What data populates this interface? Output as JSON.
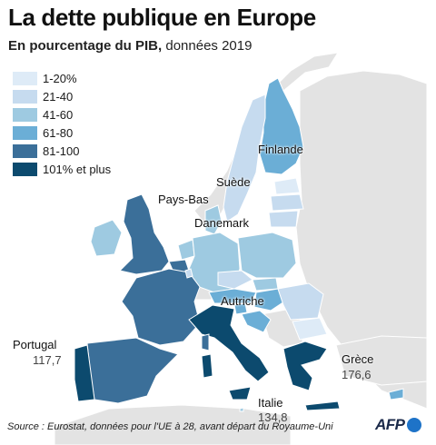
{
  "header": {
    "title": "La dette publique en Europe",
    "subtitle_bold": "En pourcentage du PIB,",
    "subtitle_rest": " données 2019"
  },
  "legend": [
    {
      "label": "1-20%",
      "color": "#deebf7"
    },
    {
      "label": "21-40",
      "color": "#c6dbef"
    },
    {
      "label": "41-60",
      "color": "#9ecae1"
    },
    {
      "label": "61-80",
      "color": "#6baed6"
    },
    {
      "label": "81-100",
      "color": "#3b6f99"
    },
    {
      "label": "101% et plus",
      "color": "#0c4a6e"
    }
  ],
  "labels": {
    "finlande": "Finlande",
    "suede": "Suède",
    "pays_bas": "Pays-Bas",
    "danemark": "Danemark",
    "autriche": "Autriche",
    "portugal": "Portugal",
    "portugal_value": "117,7",
    "grece": "Grèce",
    "grece_value": "176,6",
    "italie": "Italie",
    "italie_value": "134,8"
  },
  "footer": {
    "source": "Source : Eurostat, données pour l'UE à 28, avant départ du Royaume-Uni",
    "brand": "AFP"
  },
  "colors": {
    "non_eu": "#e3e3e3",
    "c1": "#deebf7",
    "c2": "#c6dbef",
    "c3": "#9ecae1",
    "c4": "#6baed6",
    "c5": "#3b6f99",
    "c6": "#0c4a6e"
  },
  "map_data": [
    {
      "country": "Portugal",
      "value": 117.7,
      "class": "101% et plus"
    },
    {
      "country": "Grèce",
      "value": 176.6,
      "class": "101% et plus"
    },
    {
      "country": "Italie",
      "value": 134.8,
      "class": "101% et plus"
    }
  ]
}
